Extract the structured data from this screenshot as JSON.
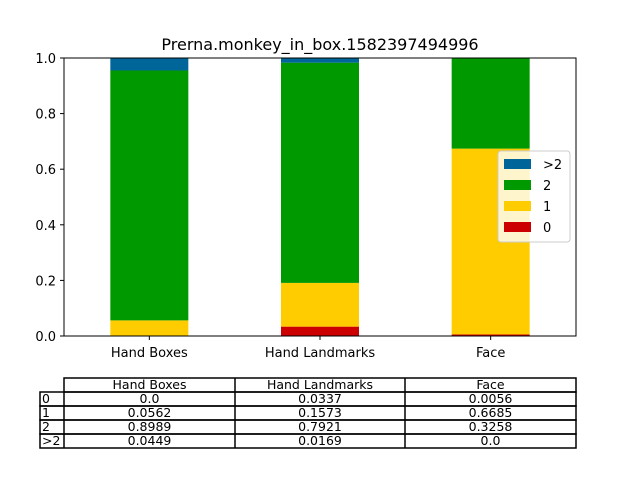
{
  "chart_data": {
    "type": "bar",
    "stacked": true,
    "title": "Prerna.monkey_in_box.1582397494996",
    "categories": [
      "Hand Boxes",
      "Hand Landmarks",
      "Face"
    ],
    "ylim": [
      0,
      1.0
    ],
    "yticks": [
      "0.0",
      "0.2",
      "0.4",
      "0.6",
      "0.8",
      "1.0"
    ],
    "series": [
      {
        "name": "0",
        "color": "#cc0000",
        "values": [
          0.0,
          0.0337,
          0.0056
        ]
      },
      {
        "name": "1",
        "color": "#ffcc00",
        "values": [
          0.0562,
          0.1573,
          0.6685
        ]
      },
      {
        "name": "2",
        "color": "#009900",
        "values": [
          0.8989,
          0.7921,
          0.3258
        ]
      },
      {
        "name": ">2",
        "color": "#006699",
        "values": [
          0.0449,
          0.0169,
          0.0
        ]
      }
    ],
    "legend": {
      "placement": "center-right",
      "order": [
        ">2",
        "2",
        "1",
        "0"
      ]
    },
    "grid": false,
    "table": {
      "col_labels": [
        "Hand Boxes",
        "Hand Landmarks",
        "Face"
      ],
      "rows": [
        {
          "label": "0",
          "cells": [
            "0.0",
            "0.0337",
            "0.0056"
          ]
        },
        {
          "label": "1",
          "cells": [
            "0.0562",
            "0.1573",
            "0.6685"
          ]
        },
        {
          "label": "2",
          "cells": [
            "0.8989",
            "0.7921",
            "0.3258"
          ]
        },
        {
          "label": ">2",
          "cells": [
            "0.0449",
            "0.0169",
            "0.0"
          ]
        }
      ]
    }
  }
}
